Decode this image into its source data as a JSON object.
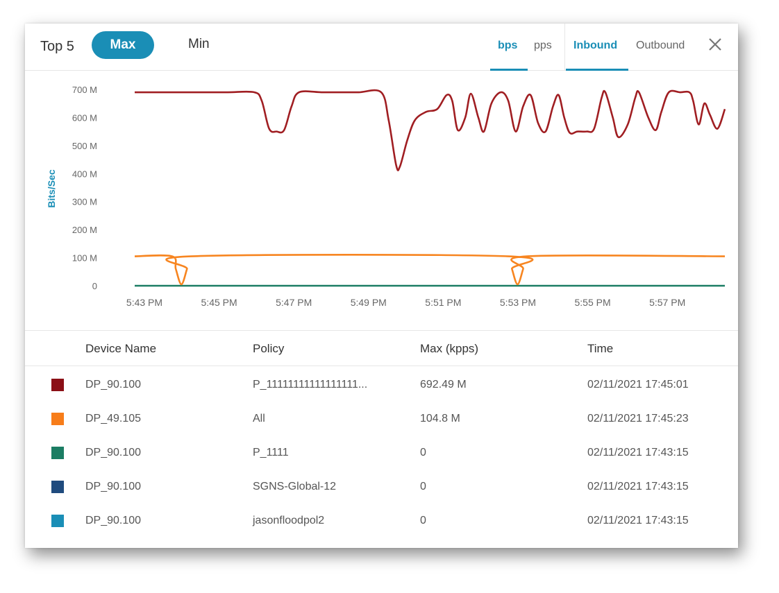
{
  "header": {
    "top_label": "Top 5",
    "max_label": "Max",
    "min_label": "Min",
    "unit_tabs": [
      "bps",
      "pps"
    ],
    "direction_tabs": [
      "Inbound",
      "Outbound"
    ],
    "close_icon": "close-icon",
    "accent_color": "#1a8eb6"
  },
  "chart_data": {
    "type": "line",
    "ylabel": "Bits/Sec",
    "yticks": [
      "700 M",
      "600 M",
      "500 M",
      "400 M",
      "300 M",
      "200 M",
      "100 M",
      "0"
    ],
    "ylim": [
      0,
      700
    ],
    "xticks": [
      "5:43 PM",
      "5:45 PM",
      "5:47 PM",
      "5:49 PM",
      "5:51 PM",
      "5:53 PM",
      "5:55 PM",
      "5:57 PM"
    ],
    "xlim_minutes": [
      0,
      15.8
    ],
    "series": [
      {
        "color": "#a01e22",
        "points": [
          [
            0,
            690
          ],
          [
            0.8,
            690
          ],
          [
            1.3,
            690
          ],
          [
            1.8,
            690
          ],
          [
            2.5,
            690
          ],
          [
            3.2,
            690
          ],
          [
            3.4,
            660
          ],
          [
            3.6,
            560
          ],
          [
            3.8,
            550
          ],
          [
            4.0,
            555
          ],
          [
            4.2,
            640
          ],
          [
            4.4,
            690
          ],
          [
            5.0,
            690
          ],
          [
            5.5,
            690
          ],
          [
            6.0,
            690
          ],
          [
            6.6,
            690
          ],
          [
            6.8,
            590
          ],
          [
            7.0,
            430
          ],
          [
            7.1,
            425
          ],
          [
            7.3,
            520
          ],
          [
            7.5,
            590
          ],
          [
            7.8,
            620
          ],
          [
            8.1,
            630
          ],
          [
            8.35,
            680
          ],
          [
            8.5,
            660
          ],
          [
            8.65,
            555
          ],
          [
            8.85,
            600
          ],
          [
            9.0,
            685
          ],
          [
            9.2,
            600
          ],
          [
            9.35,
            550
          ],
          [
            9.55,
            650
          ],
          [
            9.8,
            690
          ],
          [
            10.0,
            660
          ],
          [
            10.2,
            550
          ],
          [
            10.4,
            640
          ],
          [
            10.6,
            680
          ],
          [
            10.8,
            580
          ],
          [
            11.0,
            550
          ],
          [
            11.2,
            640
          ],
          [
            11.35,
            680
          ],
          [
            11.5,
            600
          ],
          [
            11.65,
            545
          ],
          [
            11.85,
            550
          ],
          [
            12.1,
            550
          ],
          [
            12.3,
            560
          ],
          [
            12.5,
            670
          ],
          [
            12.6,
            690
          ],
          [
            12.8,
            600
          ],
          [
            12.95,
            530
          ],
          [
            13.2,
            575
          ],
          [
            13.4,
            670
          ],
          [
            13.5,
            690
          ],
          [
            13.75,
            600
          ],
          [
            13.95,
            555
          ],
          [
            14.1,
            620
          ],
          [
            14.3,
            690
          ],
          [
            14.6,
            690
          ],
          [
            14.85,
            690
          ],
          [
            14.95,
            660
          ],
          [
            15.1,
            575
          ],
          [
            15.25,
            650
          ],
          [
            15.4,
            610
          ],
          [
            15.6,
            560
          ],
          [
            15.8,
            630
          ]
        ],
        "points_note": ""
      },
      {
        "color": "#f78520",
        "points": [
          [
            0,
            105
          ],
          [
            1.0,
            105
          ],
          [
            1.1,
            60
          ],
          [
            1.25,
            5
          ],
          [
            1.4,
            60
          ],
          [
            1.5,
            105
          ],
          [
            10.0,
            105
          ],
          [
            10.1,
            60
          ],
          [
            10.25,
            5
          ],
          [
            10.4,
            60
          ],
          [
            10.5,
            105
          ],
          [
            15.8,
            105
          ]
        ]
      },
      {
        "color": "#1b7d63",
        "points": [
          [
            0,
            0
          ],
          [
            15.8,
            0
          ]
        ]
      }
    ]
  },
  "table": {
    "headers": [
      "Device Name",
      "Policy",
      "Max (kpps)",
      "Time"
    ],
    "rows": [
      {
        "color": "#8b0f16",
        "device": "DP_90.100",
        "policy": "P_11111111111111111...",
        "max": "692.49 M",
        "time": "02/11/2021 17:45:01"
      },
      {
        "color": "#f77d1a",
        "device": "DP_49.105",
        "policy": "All",
        "max": "104.8 M",
        "time": "02/11/2021 17:45:23"
      },
      {
        "color": "#1b7d63",
        "device": "DP_90.100",
        "policy": "P_1111",
        "max": "0",
        "time": "02/11/2021 17:43:15"
      },
      {
        "color": "#1f4b7e",
        "device": "DP_90.100",
        "policy": "SGNS-Global-12",
        "max": "0",
        "time": "02/11/2021 17:43:15"
      },
      {
        "color": "#1a8eb6",
        "device": "DP_90.100",
        "policy": "jasonfloodpol2",
        "max": "0",
        "time": "02/11/2021 17:43:15"
      }
    ]
  }
}
